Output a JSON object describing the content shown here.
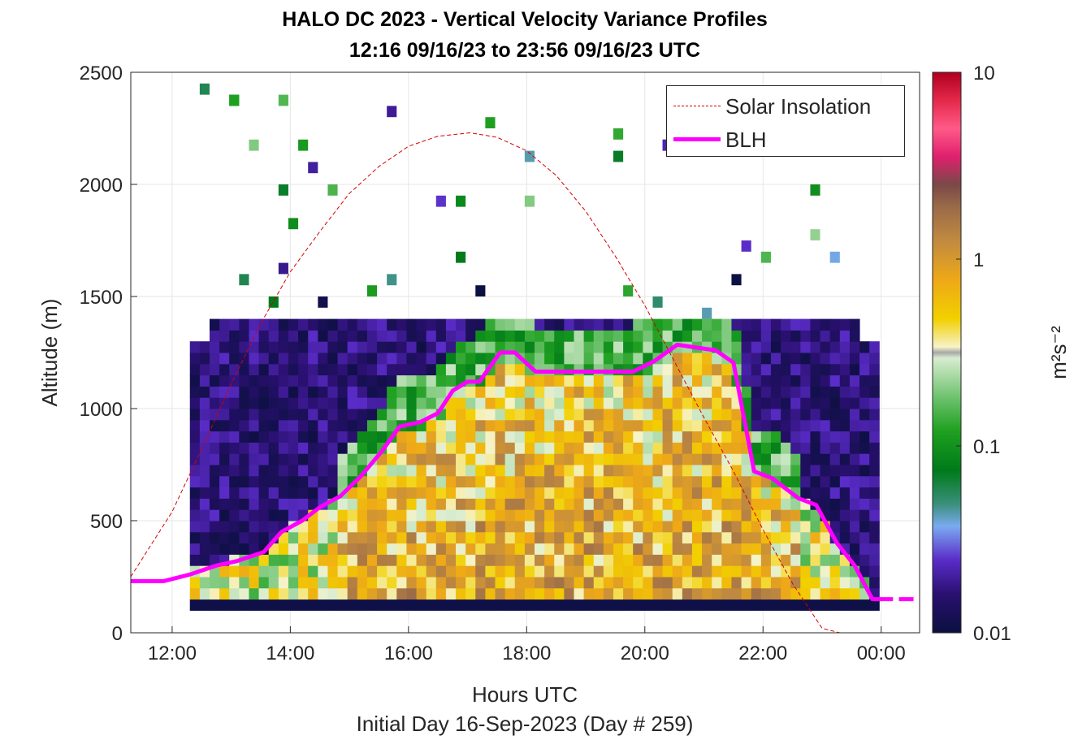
{
  "chart_data": {
    "type": "heatmap",
    "title": "HALO DC 2023 - Vertical Velocity Variance Profiles",
    "subtitle": "12:16 09/16/23 to 23:56 09/16/23  UTC",
    "xlabel": "Hours UTC",
    "ylabel": "Altitude (m)",
    "footer": "Initial Day 16-Sep-2023 (Day # 259)",
    "colorbar_label": "m²s⁻²",
    "colorbar_scale": "log",
    "colorbar_range": [
      0.01,
      10
    ],
    "colorbar_ticks": [
      "0.01",
      "0.1",
      "1",
      "10"
    ],
    "xlim_hours": [
      11.3,
      24.65
    ],
    "x_ticks": [
      "12:00",
      "14:00",
      "16:00",
      "18:00",
      "20:00",
      "22:00",
      "00:00"
    ],
    "x_tick_values": [
      12,
      14,
      16,
      18,
      20,
      22,
      24
    ],
    "ylim": [
      0,
      2500
    ],
    "y_ticks": [
      0,
      500,
      1000,
      1500,
      2000,
      2500
    ],
    "grid": true,
    "legend": {
      "position": "top-right",
      "entries": [
        {
          "label": "Solar Insolation",
          "color": "#d40000",
          "style": "dashed"
        },
        {
          "label": "BLH",
          "color": "#ff00ff",
          "style": "solid"
        }
      ]
    },
    "series": [
      {
        "name": "BLH",
        "color": "#ff00ff",
        "x": [
          11.3,
          11.85,
          12.3,
          12.75,
          13.1,
          13.55,
          13.85,
          14.2,
          14.5,
          14.85,
          15.2,
          15.55,
          15.85,
          16.2,
          16.5,
          16.75,
          17.0,
          17.2,
          17.55,
          17.8,
          18.15,
          18.5,
          18.8,
          19.2,
          19.5,
          19.8,
          20.15,
          20.55,
          20.8,
          21.2,
          21.5,
          21.85,
          22.15,
          22.35,
          22.6,
          22.9,
          23.25,
          23.55,
          23.85,
          24.2
        ],
        "y": [
          230,
          230,
          260,
          300,
          320,
          360,
          450,
          500,
          560,
          610,
          700,
          810,
          920,
          940,
          980,
          1080,
          1120,
          1120,
          1250,
          1250,
          1165,
          1165,
          1165,
          1165,
          1165,
          1165,
          1210,
          1285,
          1275,
          1260,
          1205,
          720,
          690,
          650,
          600,
          570,
          400,
          300,
          150,
          150
        ]
      },
      {
        "name": "Solar Insolation",
        "color": "#d40000",
        "peak_time_hours": 17.05,
        "peak_altitude": 2230,
        "x": [
          11.3,
          12.0,
          12.5,
          13.0,
          13.5,
          14.0,
          14.5,
          15.0,
          15.5,
          16.0,
          16.5,
          17.05,
          17.5,
          18.0,
          18.5,
          19.0,
          19.5,
          20.0,
          20.5,
          21.0,
          21.5,
          22.0,
          22.5,
          23.0,
          23.3,
          24.65
        ],
        "y": [
          250,
          540,
          820,
          1110,
          1380,
          1610,
          1790,
          1960,
          2080,
          2170,
          2215,
          2230,
          2210,
          2150,
          2040,
          1880,
          1680,
          1460,
          1210,
          960,
          720,
          460,
          220,
          20,
          0,
          0
        ]
      }
    ]
  }
}
